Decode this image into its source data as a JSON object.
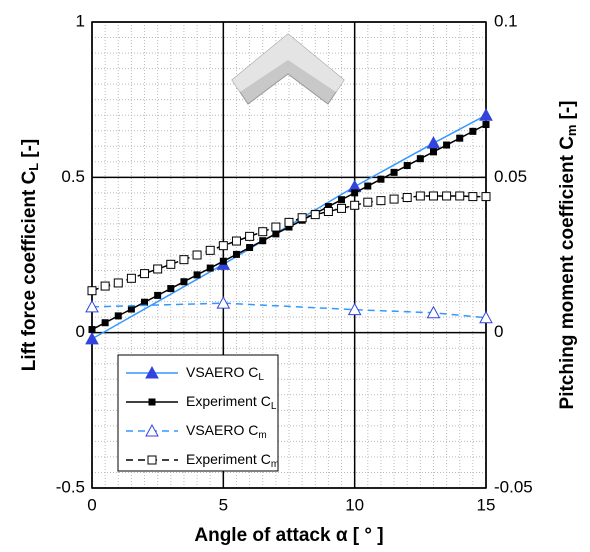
{
  "chart_data": {
    "type": "line",
    "xlabel": "Angle of attack α [ ° ]",
    "ylabel": {
      "text": "Lift force coefficient C",
      "sub": "L",
      "suffix": "[-]"
    },
    "y2label": {
      "text": "Pitching moment coefficient C",
      "sub": "m",
      "suffix": "[-]"
    },
    "xlim": [
      0,
      15
    ],
    "xticks": [
      0,
      5,
      10,
      15
    ],
    "ylim": [
      -0.5,
      1
    ],
    "yticks": [
      -0.5,
      0,
      0.5,
      1
    ],
    "y2lim": [
      -0.05,
      0.1
    ],
    "y2ticks": [
      -0.05,
      0,
      0.05,
      0.1
    ],
    "grid": true,
    "series": [
      {
        "name": "VSAERO C",
        "sub": "L",
        "color": "#3399ff",
        "marker_color": "#3344dd",
        "marker": "triangle",
        "filled": true,
        "dashed": false,
        "x": [
          0,
          5,
          10,
          13,
          15
        ],
        "values": [
          -0.02,
          0.22,
          0.47,
          0.61,
          0.7
        ]
      },
      {
        "name": "Experiment C",
        "sub": "L",
        "color": "#000000",
        "marker_color": "#000000",
        "marker": "square",
        "filled": true,
        "dashed": false,
        "x": [
          0,
          0.5,
          1,
          1.5,
          2,
          2.5,
          3,
          3.5,
          4,
          4.5,
          5,
          5.5,
          6,
          6.5,
          7,
          7.5,
          8,
          8.5,
          9,
          9.5,
          10,
          10.5,
          11,
          11.5,
          12,
          12.5,
          13,
          13.5,
          14,
          14.5,
          15
        ],
        "values": [
          0.01,
          0.032,
          0.054,
          0.076,
          0.098,
          0.12,
          0.142,
          0.164,
          0.186,
          0.208,
          0.23,
          0.252,
          0.274,
          0.296,
          0.318,
          0.34,
          0.362,
          0.384,
          0.406,
          0.428,
          0.45,
          0.472,
          0.494,
          0.516,
          0.538,
          0.56,
          0.582,
          0.604,
          0.626,
          0.648,
          0.67
        ]
      },
      {
        "name": "VSAERO C",
        "sub": "m",
        "color": "#3399ff",
        "marker_color": "#3344dd",
        "marker": "triangle",
        "filled": false,
        "dashed": true,
        "axis": "y2",
        "x": [
          0,
          5,
          10,
          13,
          15
        ],
        "values": [
          0.0083,
          0.0095,
          0.0074,
          0.0064,
          0.0048
        ]
      },
      {
        "name": "Experiment C",
        "sub": "m",
        "color": "#000000",
        "marker_color": "#000000",
        "marker": "square",
        "filled": false,
        "dashed": true,
        "axis": "y2",
        "x": [
          0,
          0.5,
          1,
          1.5,
          2,
          2.5,
          3,
          3.5,
          4,
          4.5,
          5,
          5.5,
          6,
          6.5,
          7,
          7.5,
          8,
          8.5,
          9,
          9.5,
          10,
          10.5,
          11,
          11.5,
          12,
          12.5,
          13,
          13.5,
          14,
          14.5,
          15
        ],
        "values": [
          0.0135,
          0.015,
          0.016,
          0.0175,
          0.019,
          0.0205,
          0.022,
          0.0235,
          0.025,
          0.0265,
          0.028,
          0.0295,
          0.031,
          0.0325,
          0.034,
          0.0355,
          0.037,
          0.038,
          0.039,
          0.04,
          0.041,
          0.042,
          0.0425,
          0.043,
          0.0435,
          0.044,
          0.044,
          0.044,
          0.044,
          0.0438,
          0.0438
        ]
      }
    ]
  }
}
